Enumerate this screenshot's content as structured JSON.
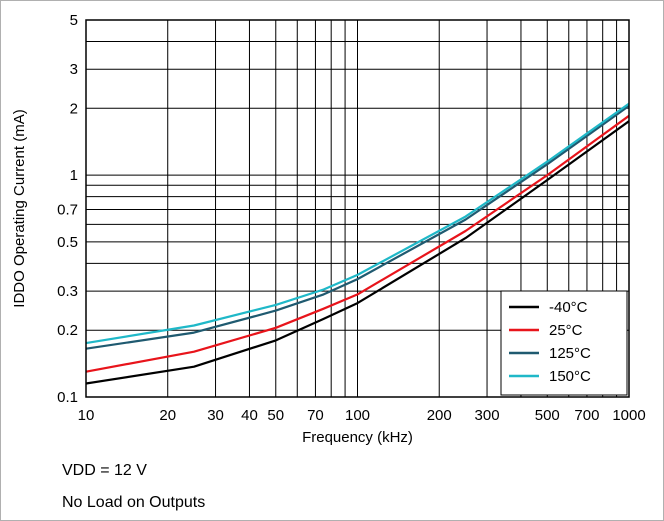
{
  "chart_data": {
    "type": "line",
    "title": "",
    "xlabel": "Frequency (kHz)",
    "ylabel": "IDDO Operating Current (mA)",
    "x_scale": "log",
    "y_scale": "log",
    "xlim": [
      10,
      1000
    ],
    "ylim": [
      0.1,
      5
    ],
    "grid": true,
    "legend_position": "bottom-right",
    "x_ticks": [
      10,
      20,
      30,
      40,
      50,
      70,
      100,
      200,
      300,
      500,
      700,
      1000
    ],
    "x_tick_labels": [
      "10",
      "20",
      "30",
      "40",
      "50",
      "70",
      "100",
      "200",
      "300",
      "500",
      "700",
      "1000"
    ],
    "y_ticks": [
      0.1,
      0.2,
      0.3,
      0.5,
      0.7,
      1,
      2,
      3,
      5
    ],
    "y_tick_labels": [
      "0.1",
      "0.2",
      "0.3",
      "0.5",
      "0.7",
      "1",
      "2",
      "3",
      "5"
    ],
    "x_minor_grid": [
      60,
      80,
      90,
      400,
      600,
      800,
      900
    ],
    "y_minor_grid": [
      0.4,
      0.6,
      0.8,
      0.9,
      4
    ],
    "series": [
      {
        "name": "-40°C",
        "color": "#000000",
        "x": [
          10,
          25,
          50,
          75,
          100,
          250,
          500,
          1000
        ],
        "y": [
          0.115,
          0.137,
          0.18,
          0.225,
          0.265,
          0.52,
          0.95,
          1.75
        ]
      },
      {
        "name": "25°C",
        "color": "#e8141b",
        "x": [
          10,
          25,
          50,
          75,
          100,
          250,
          500,
          1000
        ],
        "y": [
          0.13,
          0.16,
          0.205,
          0.25,
          0.29,
          0.56,
          1.0,
          1.85
        ]
      },
      {
        "name": "125°C",
        "color": "#1f5a70",
        "x": [
          10,
          25,
          50,
          75,
          100,
          250,
          500,
          1000
        ],
        "y": [
          0.165,
          0.195,
          0.245,
          0.29,
          0.34,
          0.63,
          1.12,
          2.05
        ]
      },
      {
        "name": "150°C",
        "color": "#1fb8c8",
        "x": [
          10,
          25,
          50,
          75,
          100,
          250,
          500,
          1000
        ],
        "y": [
          0.175,
          0.21,
          0.26,
          0.305,
          0.355,
          0.65,
          1.15,
          2.1
        ]
      }
    ]
  },
  "notes": {
    "line1": "VDD = 12 V",
    "line2": "No Load on Outputs"
  }
}
